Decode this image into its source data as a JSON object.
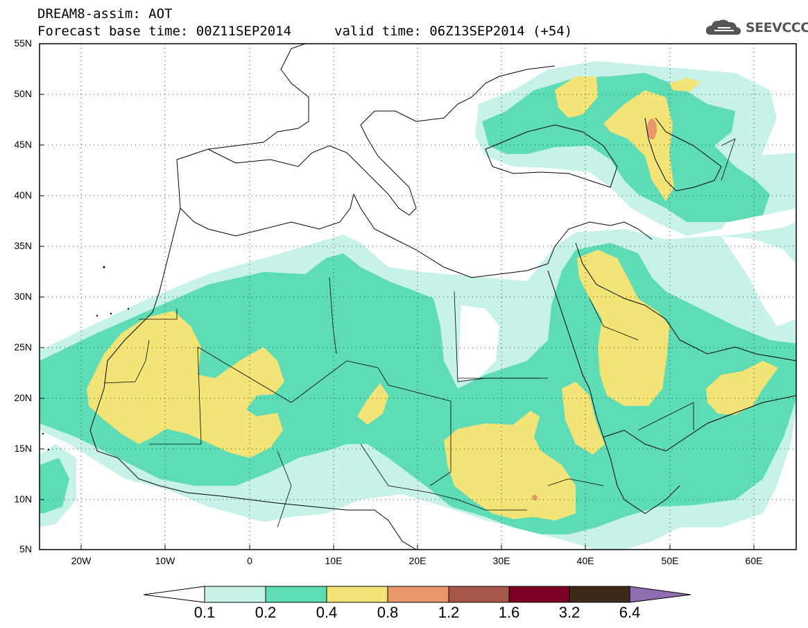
{
  "header": {
    "line1": "DREAM8-assim: AOT",
    "line2": "Forecast base time: 00Z11SEP2014",
    "line2b": "valid time: 06Z13SEP2014 (+54)",
    "logo_text": "SEEVCCC"
  },
  "map": {
    "lon_range": [
      -25,
      65
    ],
    "lat_range": [
      5,
      55
    ],
    "lat_labels": [
      "55N",
      "50N",
      "45N",
      "40N",
      "35N",
      "30N",
      "25N",
      "20N",
      "15N",
      "10N",
      "5N"
    ],
    "lon_labels": [
      "20W",
      "10W",
      "0",
      "10E",
      "20E",
      "30E",
      "40E",
      "50E",
      "60E"
    ]
  },
  "colorbar": {
    "labels": [
      "0.1",
      "0.2",
      "0.4",
      "0.8",
      "1.2",
      "1.6",
      "3.2",
      "6.4"
    ],
    "colors": [
      "#ffffff",
      "#c6f2ea",
      "#5ddcb5",
      "#f2e476",
      "#e9966a",
      "#a5584a",
      "#7a0026",
      "#3d2a18",
      "#8e6db0"
    ]
  },
  "colors": {
    "c1": "#c6f2ea",
    "c2": "#5ddcb5",
    "c3": "#f2e476",
    "c4": "#e9966a",
    "c5": "#cd6a5a"
  }
}
